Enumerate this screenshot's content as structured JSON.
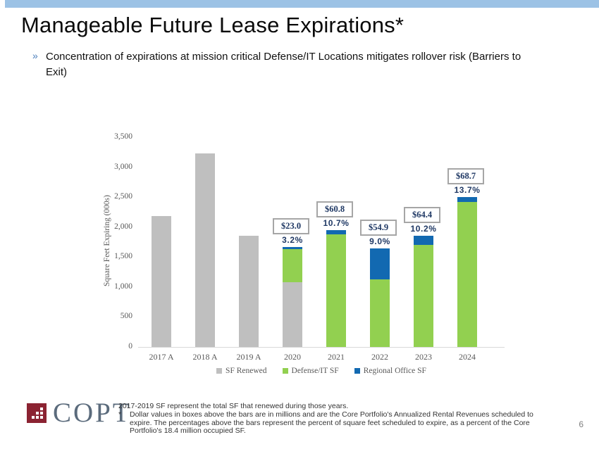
{
  "slide": {
    "title": "Manageable Future Lease Expirations*",
    "bullet": {
      "marker": "»",
      "text": "Concentration of expirations at mission critical Defense/IT Locations mitigates rollover risk (Barriers to Exit)"
    },
    "page_number": "6"
  },
  "chart_data": {
    "type": "bar",
    "stacked": true,
    "title": "",
    "xlabel": "",
    "ylabel": "Square Feet Expiring  (000s)",
    "ylim": [
      0,
      3500
    ],
    "ytick_interval": 500,
    "yticks": [
      "0",
      "500",
      "1,000",
      "1,500",
      "2,000",
      "2,500",
      "3,000",
      "3,500"
    ],
    "grid": false,
    "legend_position": "bottom",
    "categories": [
      "2017 A",
      "2018 A",
      "2019 A",
      "2020",
      "2021",
      "2022",
      "2023",
      "2024"
    ],
    "series": [
      {
        "name": "SF Renewed",
        "color": "#BFBFBF",
        "values": [
          2180,
          3230,
          1850,
          1080,
          0,
          0,
          0,
          0
        ]
      },
      {
        "name": "Defense/IT SF",
        "color": "#92D050",
        "values": [
          0,
          0,
          0,
          550,
          1880,
          1130,
          1700,
          2420
        ]
      },
      {
        "name": "Regional Office SF",
        "color": "#1269B1",
        "values": [
          0,
          0,
          0,
          40,
          70,
          520,
          150,
          80
        ]
      }
    ],
    "annotations": [
      {
        "category": "2020",
        "pct": "3.2%",
        "box": "$23.0"
      },
      {
        "category": "2021",
        "pct": "10.7%",
        "box": "$60.8"
      },
      {
        "category": "2022",
        "pct": "9.0%",
        "box": "$54.9"
      },
      {
        "category": "2023",
        "pct": "10.2%",
        "box": "$64.4"
      },
      {
        "category": "2024",
        "pct": "13.7%",
        "box": "$68.7"
      }
    ]
  },
  "footer": {
    "logo_text": "COPT",
    "footnote_line1": "2017-2019 SF represent the total SF that renewed during those years.",
    "footnote_marker": "*",
    "footnote_line2": "Dollar values in boxes above the bars are in millions and are the Core Portfolio's Annualized Rental Revenues scheduled to expire. The percentages above the bars represent the percent of square feet scheduled to expire, as a percent of the Core Portfolio's 18.4 million occupied SF."
  },
  "colors": {
    "top_bar": "#9CC2E5",
    "bar_gray": "#BFBFBF",
    "bar_green": "#92D050",
    "bar_blue": "#1269B1",
    "annotation_text": "#1F3864",
    "box_border": "#A6A6A6",
    "axis_text": "#595959",
    "logo_maroon": "#8B2332",
    "logo_gray": "#5B6B7C"
  }
}
